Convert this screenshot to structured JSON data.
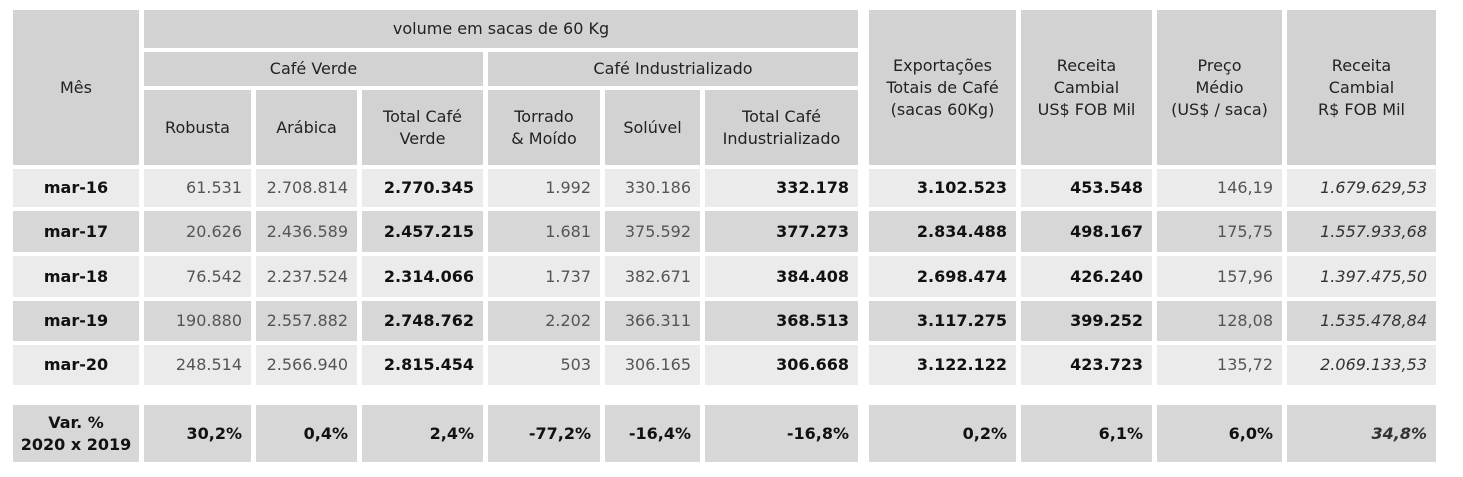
{
  "header": {
    "mes": "Mês",
    "volume": "volume em sacas de 60 Kg",
    "cafe_verde": "Café Verde",
    "cafe_industrializado": "Café Industrializado",
    "robusta": "Robusta",
    "arabica": "Arábica",
    "total_verde_1": "Total Café",
    "total_verde_2": "Verde",
    "torrado_1": "Torrado",
    "torrado_2": "& Moído",
    "soluvel": "Solúvel",
    "total_ind_1": "Total Café",
    "total_ind_2": "Industrializado",
    "export_1": "Exportações",
    "export_2": "Totais de Café",
    "export_3": "(sacas 60Kg)",
    "receita_usd_1": "Receita",
    "receita_usd_2": "Cambial",
    "receita_usd_3": "US$ FOB Mil",
    "preco_1": "Preço",
    "preco_2": "Médio",
    "preco_3": "(US$ / saca)",
    "receita_brl_1": "Receita",
    "receita_brl_2": "Cambial",
    "receita_brl_3": "R$ FOB Mil"
  },
  "rows": [
    [
      "mar-16",
      "61.531",
      "2.708.814",
      "2.770.345",
      "1.992",
      "330.186",
      "332.178",
      "3.102.523",
      "453.548",
      "146,19",
      "1.679.629,53"
    ],
    [
      "mar-17",
      "20.626",
      "2.436.589",
      "2.457.215",
      "1.681",
      "375.592",
      "377.273",
      "2.834.488",
      "498.167",
      "175,75",
      "1.557.933,68"
    ],
    [
      "mar-18",
      "76.542",
      "2.237.524",
      "2.314.066",
      "1.737",
      "382.671",
      "384.408",
      "2.698.474",
      "426.240",
      "157,96",
      "1.397.475,50"
    ],
    [
      "mar-19",
      "190.880",
      "2.557.882",
      "2.748.762",
      "2.202",
      "366.311",
      "368.513",
      "3.117.275",
      "399.252",
      "128,08",
      "1.535.478,84"
    ],
    [
      "mar-20",
      "248.514",
      "2.566.940",
      "2.815.454",
      "503",
      "306.165",
      "306.668",
      "3.122.122",
      "423.723",
      "135,72",
      "2.069.133,53"
    ]
  ],
  "variation": {
    "label_1": "Var. %",
    "label_2": "2020 x 2019",
    "values": [
      "30,2%",
      "0,4%",
      "2,4%",
      "-77,2%",
      "-16,4%",
      "-16,8%",
      "0,2%",
      "6,1%",
      "6,0%",
      "34,8%"
    ]
  }
}
